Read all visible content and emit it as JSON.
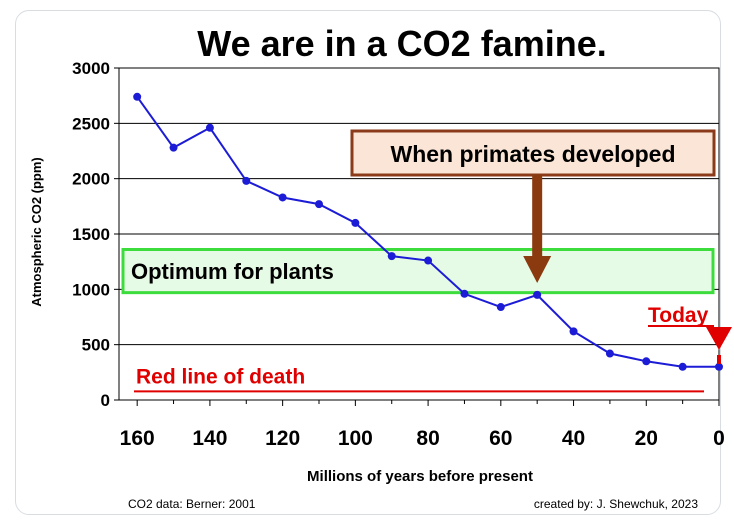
{
  "chart_data": {
    "type": "line",
    "title": "We are in a CO2 famine.",
    "xlabel": "Millions of years before present",
    "ylabel": "Atmospheric CO2 (ppm)",
    "x_reversed": true,
    "xlim": [
      165,
      0
    ],
    "ylim": [
      0,
      3000
    ],
    "x_ticks": [
      160,
      140,
      120,
      100,
      80,
      60,
      40,
      20,
      0
    ],
    "y_ticks": [
      0,
      500,
      1000,
      1500,
      2000,
      2500,
      3000
    ],
    "grid": "horizontal",
    "x": [
      160,
      150,
      140,
      130,
      120,
      110,
      100,
      90,
      80,
      70,
      60,
      50,
      40,
      30,
      20,
      10,
      0
    ],
    "y": [
      2740,
      2280,
      2460,
      1980,
      1830,
      1770,
      1600,
      1300,
      1260,
      960,
      840,
      950,
      620,
      420,
      350,
      300,
      300
    ],
    "line_color": "#1c1cd6",
    "annotations": {
      "optimum": {
        "label": "Optimum for plants",
        "y_range": [
          970,
          1360
        ],
        "fill": "#e6fbe6",
        "stroke": "#3ddc3d"
      },
      "primates": {
        "label": "When primates developed",
        "x": 50,
        "box_fill": "#fbe5d6",
        "box_stroke": "#8b3a1a",
        "arrow_color": "#8b3a0f"
      },
      "death": {
        "label": "Red line of death",
        "y": 150,
        "color": "#e00000"
      },
      "today": {
        "label": "Today",
        "x": 0,
        "color": "#e00000"
      }
    }
  },
  "footer": {
    "source": "CO2 data: Berner: 2001",
    "credit": "created by: J. Shewchuk, 2023"
  }
}
